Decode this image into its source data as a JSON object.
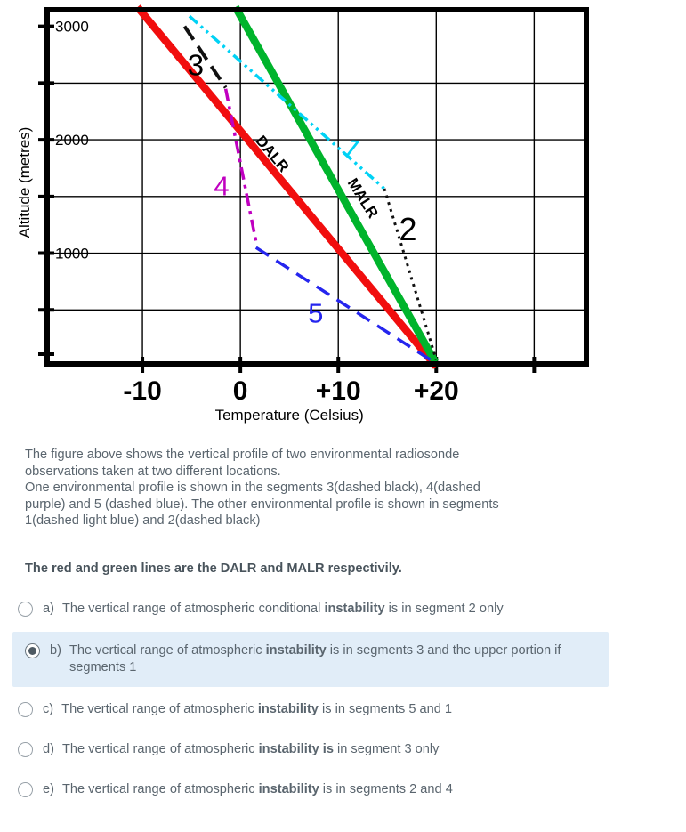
{
  "chart_data": {
    "type": "line",
    "title": "",
    "xlabel": "Temperature (Celsius)",
    "ylabel": "Altitude (metres)",
    "xlim": [
      -20,
      35.6
    ],
    "ylim": [
      0,
      3170
    ],
    "grid_on": true,
    "x_ticks": [
      {
        "value": -10,
        "label": "-10"
      },
      {
        "value": 0,
        "label": "0"
      },
      {
        "value": 10,
        "label": "+10"
      },
      {
        "value": 20,
        "label": "+20"
      },
      {
        "value": 30,
        "label": ""
      }
    ],
    "y_ticks": [
      {
        "value": 3000,
        "label": "3000"
      },
      {
        "value": 2500,
        "label": ""
      },
      {
        "value": 2000,
        "label": "2000"
      },
      {
        "value": 1500,
        "label": ""
      },
      {
        "value": 1000,
        "label": "1000"
      },
      {
        "value": 500,
        "label": ""
      },
      {
        "value": 110,
        "label": ""
      }
    ],
    "grid_x": [
      -10,
      0,
      10,
      20,
      30
    ],
    "grid_y": [
      500,
      1000,
      1500,
      2000,
      2500
    ],
    "series": [
      {
        "name": "DALR",
        "color": "#f10e0e",
        "width": 8.5,
        "dash": "",
        "points": [
          [
            -10.5,
            3170
          ],
          [
            20,
            0
          ]
        ]
      },
      {
        "name": "MALR",
        "color": "#00b42c",
        "width": 8.5,
        "dash": "",
        "points": [
          [
            -0.5,
            3170
          ],
          [
            19.9,
            40
          ]
        ]
      },
      {
        "name": "segment-1-dashed-light-blue",
        "color": "#00d2f5",
        "width": 3.5,
        "dash": "12 5 3 5 3 5",
        "points": [
          [
            -5.2,
            3090
          ],
          [
            14.7,
            1570
          ]
        ]
      },
      {
        "name": "segment-2-dotted-black",
        "color": "#111111",
        "width": 3,
        "dash": "3 5",
        "points": [
          [
            14.7,
            1570
          ],
          [
            20,
            60
          ]
        ]
      },
      {
        "name": "segment-3-dashed-black",
        "color": "#111111",
        "width": 4,
        "dash": "18 9",
        "points": [
          [
            -5.7,
            3000
          ],
          [
            -1.5,
            2460
          ]
        ]
      },
      {
        "name": "segment-4-dashed-purple",
        "color": "#c000c0",
        "width": 3.5,
        "dash": "14 6 4 6",
        "points": [
          [
            -1.5,
            2450
          ],
          [
            1.6,
            1100
          ]
        ]
      },
      {
        "name": "segment-5-dashed-blue",
        "color": "#2525ee",
        "width": 3.5,
        "dash": "17 10",
        "points": [
          [
            1.6,
            1050
          ],
          [
            20.2,
            15
          ]
        ]
      }
    ],
    "annotations": [
      {
        "text": "3",
        "t": -5.4,
        "alt": 2570,
        "size": 33,
        "color": "#000000",
        "rotate": 0,
        "weight": "normal"
      },
      {
        "text": "4",
        "t": -2.7,
        "alt": 1510,
        "size": 31,
        "color": "#c000c0",
        "rotate": 0,
        "weight": "normal"
      },
      {
        "text": "5",
        "t": 6.9,
        "alt": 390,
        "size": 31,
        "color": "#2525ee",
        "rotate": 0,
        "weight": "normal"
      },
      {
        "text": "1",
        "t": 10.2,
        "alt": 1900,
        "size": 31,
        "color": "#00d2f5",
        "rotate": 38,
        "weight": "normal"
      },
      {
        "text": "2",
        "t": 16.2,
        "alt": 1115,
        "size": 36,
        "color": "#000000",
        "rotate": 0,
        "weight": "normal"
      },
      {
        "text": "DALR",
        "t": 1.5,
        "alt": 1990,
        "size": 17,
        "color": "#000000",
        "rotate": 50,
        "weight": "bold"
      },
      {
        "text": "MALR",
        "t": 10.9,
        "alt": 1625,
        "size": 17,
        "color": "#000000",
        "rotate": 58,
        "weight": "bold"
      }
    ]
  },
  "question": {
    "lines": [
      "The figure above  shows the vertical profile of two environmental radiosonde",
      "observations taken at two different locations.",
      " One environmental  profile is shown in the segments 3(dashed black), 4(dashed",
      "purple) and 5 (dashed blue). The other environmental profile is shown in segments",
      "1(dashed light blue) and 2(dashed black)"
    ],
    "emphasis": "The red and green lines are the DALR and MALR respectivily."
  },
  "options": [
    {
      "key": "a)",
      "selected": false,
      "highlighted": false,
      "pre": "The vertical range of atmospheric conditional ",
      "bold": "instability",
      "post": " is in segment 2 only"
    },
    {
      "key": "b)",
      "selected": true,
      "highlighted": true,
      "pre": "The vertical range of atmospheric ",
      "bold": "instability",
      "post": " is in segments 3 and the upper portion if segments 1"
    },
    {
      "key": "c)",
      "selected": false,
      "highlighted": false,
      "pre": "The vertical range of atmospheric ",
      "bold": "instability",
      "post": " is in segments 5 and 1"
    },
    {
      "key": "d)",
      "selected": false,
      "highlighted": false,
      "pre": "The vertical range of atmospheric  ",
      "bold": "instability is",
      "post": " in segment 3 only"
    },
    {
      "key": "e)",
      "selected": false,
      "highlighted": false,
      "pre": "The vertical range of atmospheric ",
      "bold": "instability",
      "post": " is in segments 2 and 4"
    }
  ],
  "colors": {
    "highlight_bg": "#e1edf8",
    "text": "#5a656e",
    "emphasis_text": "#49545c"
  }
}
